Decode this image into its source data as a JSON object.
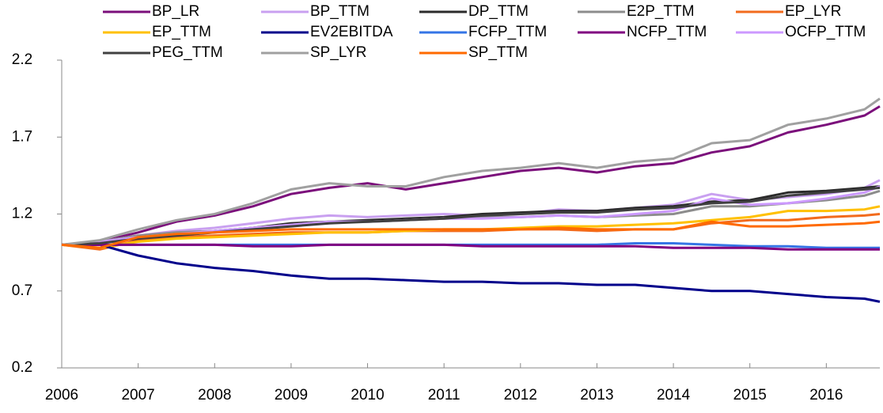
{
  "chart_data": {
    "type": "line",
    "x": [
      2006,
      2006.5,
      2007,
      2007.5,
      2008,
      2008.5,
      2009,
      2009.5,
      2010,
      2010.5,
      2011,
      2011.5,
      2012,
      2012.5,
      2013,
      2013.5,
      2014,
      2014.5,
      2015,
      2015.5,
      2016,
      2016.5,
      2016.7
    ],
    "xlim": [
      2006,
      2016.7
    ],
    "xticks": [
      2006,
      2007,
      2008,
      2009,
      2010,
      2011,
      2012,
      2013,
      2014,
      2015,
      2016
    ],
    "ylim": [
      0.2,
      2.2
    ],
    "yticks": [
      0.2,
      0.7,
      1.2,
      1.7,
      2.2
    ],
    "grid": false,
    "legend": "top",
    "series": [
      {
        "name": "BP_LR",
        "color": "#7b0f7b",
        "values": [
          1.0,
          1.02,
          1.08,
          1.15,
          1.19,
          1.25,
          1.33,
          1.37,
          1.4,
          1.36,
          1.4,
          1.44,
          1.48,
          1.5,
          1.47,
          1.51,
          1.53,
          1.6,
          1.64,
          1.73,
          1.78,
          1.84,
          1.9
        ]
      },
      {
        "name": "BP_TTM",
        "color": "#c9a0f0",
        "values": [
          1.0,
          1.02,
          1.06,
          1.09,
          1.11,
          1.14,
          1.17,
          1.19,
          1.18,
          1.19,
          1.2,
          1.19,
          1.2,
          1.23,
          1.22,
          1.24,
          1.26,
          1.33,
          1.29,
          1.31,
          1.33,
          1.37,
          1.42
        ]
      },
      {
        "name": "DP_TTM",
        "color": "#2b2b2b",
        "values": [
          1.0,
          1.02,
          1.05,
          1.07,
          1.09,
          1.11,
          1.14,
          1.15,
          1.16,
          1.17,
          1.18,
          1.2,
          1.21,
          1.22,
          1.22,
          1.24,
          1.25,
          1.28,
          1.29,
          1.34,
          1.35,
          1.37,
          1.38
        ]
      },
      {
        "name": "E2P_TTM",
        "color": "#8c8c8c",
        "values": [
          1.0,
          1.02,
          1.06,
          1.08,
          1.09,
          1.11,
          1.13,
          1.15,
          1.15,
          1.16,
          1.17,
          1.18,
          1.18,
          1.19,
          1.18,
          1.19,
          1.2,
          1.25,
          1.25,
          1.27,
          1.29,
          1.32,
          1.35
        ]
      },
      {
        "name": "EP_LYR",
        "color": "#f26b1d",
        "values": [
          1.0,
          0.97,
          1.03,
          1.05,
          1.06,
          1.07,
          1.08,
          1.08,
          1.08,
          1.09,
          1.09,
          1.09,
          1.1,
          1.1,
          1.09,
          1.1,
          1.1,
          1.14,
          1.16,
          1.16,
          1.18,
          1.19,
          1.2
        ]
      },
      {
        "name": "EP_TTM",
        "color": "#ffc000",
        "values": [
          1.0,
          0.98,
          1.02,
          1.04,
          1.05,
          1.06,
          1.07,
          1.08,
          1.08,
          1.09,
          1.1,
          1.1,
          1.11,
          1.12,
          1.12,
          1.13,
          1.14,
          1.16,
          1.18,
          1.22,
          1.22,
          1.23,
          1.25
        ]
      },
      {
        "name": "EV2EBITDA",
        "color": "#00008b",
        "values": [
          1.0,
          1.0,
          0.93,
          0.88,
          0.85,
          0.83,
          0.8,
          0.78,
          0.78,
          0.77,
          0.76,
          0.76,
          0.75,
          0.75,
          0.74,
          0.74,
          0.72,
          0.7,
          0.7,
          0.68,
          0.66,
          0.65,
          0.63
        ]
      },
      {
        "name": "FCFP_TTM",
        "color": "#3575e6",
        "values": [
          1.0,
          1.0,
          1.0,
          1.0,
          1.0,
          1.0,
          1.0,
          1.0,
          1.0,
          1.0,
          1.0,
          1.0,
          1.0,
          1.0,
          1.0,
          1.01,
          1.01,
          1.0,
          0.99,
          0.99,
          0.98,
          0.98,
          0.98
        ]
      },
      {
        "name": "NCFP_TTM",
        "color": "#800080",
        "values": [
          1.0,
          1.0,
          1.0,
          1.0,
          1.0,
          0.99,
          0.99,
          1.0,
          1.0,
          1.0,
          1.0,
          0.99,
          0.99,
          0.99,
          0.99,
          0.99,
          0.98,
          0.98,
          0.98,
          0.97,
          0.97,
          0.97,
          0.97
        ]
      },
      {
        "name": "OCFP_TTM",
        "color": "#cc99ff",
        "values": [
          1.0,
          1.02,
          1.05,
          1.07,
          1.09,
          1.11,
          1.13,
          1.15,
          1.15,
          1.16,
          1.17,
          1.17,
          1.18,
          1.19,
          1.18,
          1.2,
          1.22,
          1.3,
          1.26,
          1.27,
          1.3,
          1.34,
          1.38
        ]
      },
      {
        "name": "PEG_TTM",
        "color": "#404040",
        "values": [
          1.0,
          1.01,
          1.04,
          1.06,
          1.08,
          1.1,
          1.12,
          1.14,
          1.15,
          1.16,
          1.17,
          1.19,
          1.2,
          1.21,
          1.21,
          1.23,
          1.24,
          1.27,
          1.28,
          1.32,
          1.34,
          1.36,
          1.37
        ]
      },
      {
        "name": "SP_LYR",
        "color": "#a0a0a0",
        "values": [
          1.0,
          1.03,
          1.1,
          1.16,
          1.2,
          1.27,
          1.36,
          1.4,
          1.38,
          1.38,
          1.44,
          1.48,
          1.5,
          1.53,
          1.5,
          1.54,
          1.56,
          1.66,
          1.68,
          1.78,
          1.82,
          1.88,
          1.95
        ]
      },
      {
        "name": "SP_TTM",
        "color": "#ff6a00",
        "values": [
          1.0,
          0.98,
          1.05,
          1.07,
          1.08,
          1.09,
          1.1,
          1.1,
          1.1,
          1.1,
          1.1,
          1.1,
          1.1,
          1.11,
          1.1,
          1.1,
          1.1,
          1.15,
          1.12,
          1.12,
          1.13,
          1.14,
          1.15
        ]
      }
    ]
  }
}
